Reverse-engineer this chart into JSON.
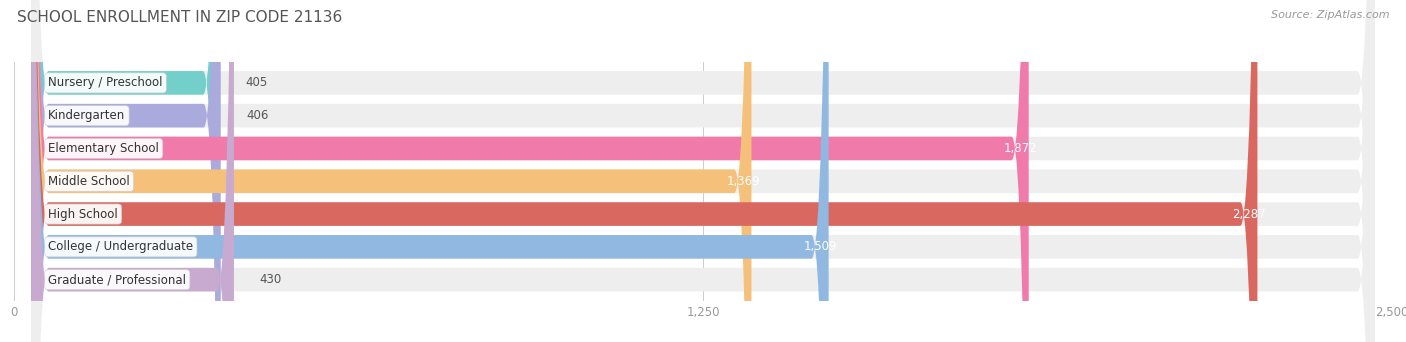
{
  "title": "SCHOOL ENROLLMENT IN ZIP CODE 21136",
  "source": "Source: ZipAtlas.com",
  "categories": [
    "Nursery / Preschool",
    "Kindergarten",
    "Elementary School",
    "Middle School",
    "High School",
    "College / Undergraduate",
    "Graduate / Professional"
  ],
  "values": [
    405,
    406,
    1872,
    1369,
    2287,
    1509,
    430
  ],
  "bar_colors": [
    "#72cfc9",
    "#aaaadd",
    "#f07aaa",
    "#f5c07a",
    "#d96860",
    "#90b8e0",
    "#c8aad0"
  ],
  "bar_bg_color": "#eeeeee",
  "xlim": [
    0,
    2500
  ],
  "xticks": [
    0,
    1250,
    2500
  ],
  "xtick_labels": [
    "0",
    "1,250",
    "2,500"
  ],
  "title_fontsize": 11,
  "source_fontsize": 8,
  "label_fontsize": 8.5,
  "value_fontsize": 8.5,
  "background_color": "#ffffff",
  "value_inside_threshold": 700
}
